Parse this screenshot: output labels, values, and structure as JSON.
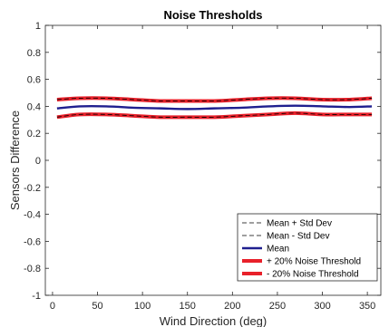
{
  "chart_data": {
    "type": "line",
    "title": "Noise Thresholds",
    "xlabel": "Wind Direction (deg)",
    "ylabel": "Sensors Difference",
    "xlim": [
      -8,
      365
    ],
    "ylim": [
      -1,
      1
    ],
    "xticks": [
      0,
      50,
      100,
      150,
      200,
      250,
      300,
      350
    ],
    "yticks": [
      -1,
      -0.8,
      -0.6,
      -0.4,
      -0.2,
      0,
      0.2,
      0.4,
      0.6,
      0.8,
      1
    ],
    "grid": false,
    "legend_position": "bottom-right",
    "x": [
      5,
      30,
      60,
      90,
      120,
      150,
      180,
      210,
      240,
      270,
      300,
      330,
      355
    ],
    "series": [
      {
        "name": "Mean + Std Dev",
        "color": "#000000",
        "style": "dashed",
        "values": [
          0.45,
          0.46,
          0.46,
          0.45,
          0.44,
          0.44,
          0.44,
          0.45,
          0.46,
          0.46,
          0.45,
          0.45,
          0.46
        ]
      },
      {
        "name": "Mean - Std Dev",
        "color": "#000000",
        "style": "dashed",
        "values": [
          0.32,
          0.34,
          0.34,
          0.33,
          0.32,
          0.32,
          0.32,
          0.33,
          0.34,
          0.35,
          0.34,
          0.34,
          0.34
        ]
      },
      {
        "name": "Mean",
        "color": "#1f1f8f",
        "style": "solid",
        "values": [
          0.385,
          0.4,
          0.4,
          0.39,
          0.385,
          0.38,
          0.385,
          0.39,
          0.4,
          0.405,
          0.4,
          0.395,
          0.4
        ]
      },
      {
        "name": "+ 20% Noise Threshold",
        "color": "#e8202a",
        "style": "thick",
        "values": [
          0.45,
          0.46,
          0.46,
          0.45,
          0.44,
          0.44,
          0.44,
          0.45,
          0.46,
          0.46,
          0.45,
          0.45,
          0.46
        ]
      },
      {
        "name": "- 20% Noise Threshold",
        "color": "#e8202a",
        "style": "thick",
        "values": [
          0.32,
          0.34,
          0.34,
          0.33,
          0.32,
          0.32,
          0.32,
          0.33,
          0.34,
          0.35,
          0.34,
          0.34,
          0.34
        ]
      }
    ]
  }
}
